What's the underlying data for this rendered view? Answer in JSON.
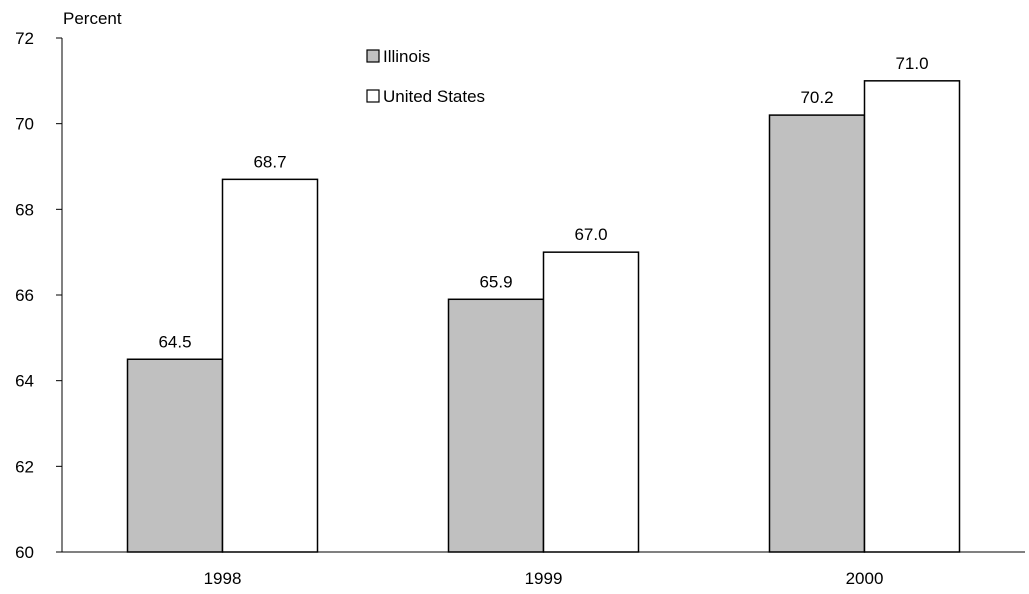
{
  "chart_data": {
    "type": "bar",
    "categories": [
      "1998",
      "1999",
      "2000"
    ],
    "series": [
      {
        "name": "Illinois",
        "values": [
          64.5,
          65.9,
          70.2
        ],
        "color": "#c0c0c0"
      },
      {
        "name": "United States",
        "values": [
          68.7,
          67.0,
          71.0
        ],
        "color": "#ffffff"
      }
    ],
    "data_labels": [
      [
        "64.5",
        "65.9",
        "70.2"
      ],
      [
        "68.7",
        "67.0",
        "71.0"
      ]
    ],
    "ylabel": "Percent",
    "ylim": [
      60,
      72
    ],
    "yticks": [
      "60",
      "62",
      "64",
      "66",
      "68",
      "70",
      "72"
    ],
    "legend_position": "top-center",
    "grid": false
  }
}
